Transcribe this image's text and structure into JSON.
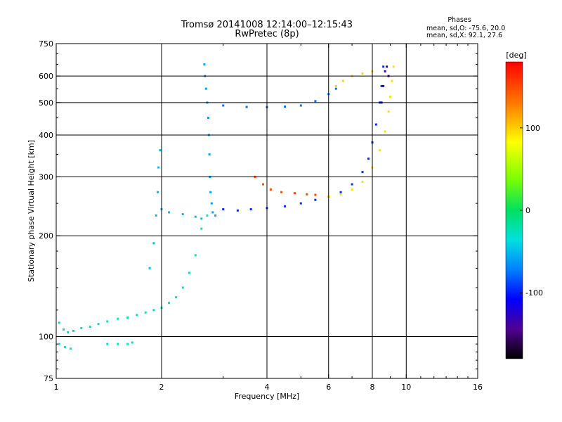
{
  "chart_data": {
    "type": "scatter",
    "title": "Tromsø 20141008 12:14:00–12:15:43",
    "subtitle": "RwPretec (8p)",
    "stats": {
      "heading": "Phases",
      "line_o": "mean, sd,O: -75.6, 20.0",
      "line_x": "mean, sd,X:  92.1, 27.6"
    },
    "xlabel": "Frequency [MHz]",
    "ylabel": "Stationary phase Virtual Height [km]",
    "x_scale": "log",
    "y_scale": "log",
    "xlim": [
      1,
      16
    ],
    "ylim": [
      75,
      750
    ],
    "x_ticks": [
      1,
      2,
      4,
      6,
      8,
      10,
      16
    ],
    "x_tick_labels": [
      "1",
      "2",
      "4",
      "6",
      "8",
      "10",
      "16"
    ],
    "y_ticks": [
      75,
      100,
      200,
      300,
      400,
      500,
      600,
      750
    ],
    "y_tick_labels": [
      "75",
      "100",
      "200",
      "300",
      "400",
      "500",
      "600",
      "750"
    ],
    "grid_x": [
      2,
      4,
      6,
      8,
      10
    ],
    "grid_y": [
      100,
      200,
      300,
      400,
      500,
      600
    ],
    "grid": true,
    "colorbar": {
      "label": "[deg]",
      "min": -180,
      "max": 180,
      "ticks": [
        100,
        0,
        -100
      ],
      "tick_labels": [
        "100",
        "0",
        "-100"
      ]
    },
    "series": [
      {
        "name": "",
        "color_deg": -25,
        "points": [
          [
            1.02,
            110
          ],
          [
            1.05,
            105
          ],
          [
            1.08,
            103
          ],
          [
            1.12,
            104
          ],
          [
            1.18,
            106
          ],
          [
            1.25,
            107
          ],
          [
            1.32,
            109
          ],
          [
            1.4,
            111
          ],
          [
            1.5,
            113
          ],
          [
            1.6,
            114
          ],
          [
            1.7,
            116
          ],
          [
            1.8,
            118
          ],
          [
            1.9,
            120
          ],
          [
            2.0,
            122
          ],
          [
            2.1,
            126
          ],
          [
            2.2,
            131
          ],
          [
            2.3,
            140
          ],
          [
            2.4,
            155
          ],
          [
            2.5,
            175
          ],
          [
            2.6,
            210
          ],
          [
            2.7,
            230
          ]
        ]
      },
      {
        "name": "",
        "color_deg": -30,
        "points": [
          [
            1.02,
            95
          ],
          [
            1.06,
            93
          ],
          [
            1.1,
            92
          ],
          [
            1.4,
            95
          ],
          [
            1.5,
            95
          ],
          [
            1.6,
            95
          ],
          [
            1.65,
            96
          ]
        ]
      },
      {
        "name": "",
        "color_deg": -60,
        "points": [
          [
            2.65,
            650
          ],
          [
            2.66,
            600
          ],
          [
            2.68,
            550
          ],
          [
            2.7,
            500
          ],
          [
            2.72,
            450
          ],
          [
            2.73,
            400
          ],
          [
            2.74,
            350
          ],
          [
            2.75,
            300
          ],
          [
            2.76,
            270
          ],
          [
            2.78,
            250
          ],
          [
            2.8,
            235
          ],
          [
            2.85,
            230
          ]
        ]
      },
      {
        "name": "",
        "color_deg": -50,
        "points": [
          [
            1.85,
            160
          ],
          [
            1.9,
            190
          ],
          [
            1.93,
            230
          ],
          [
            1.95,
            270
          ],
          [
            1.96,
            320
          ],
          [
            1.98,
            360
          ],
          [
            2.0,
            240
          ],
          [
            2.1,
            235
          ],
          [
            2.3,
            232
          ],
          [
            2.5,
            228
          ],
          [
            2.6,
            225
          ]
        ]
      },
      {
        "name": "",
        "color_deg": -95,
        "points": [
          [
            3.0,
            240
          ],
          [
            3.3,
            238
          ],
          [
            3.6,
            240
          ],
          [
            4.0,
            242
          ],
          [
            4.5,
            245
          ],
          [
            5.0,
            250
          ],
          [
            5.5,
            256
          ],
          [
            6.0,
            262
          ],
          [
            6.5,
            270
          ],
          [
            7.0,
            285
          ],
          [
            7.5,
            310
          ],
          [
            7.8,
            340
          ],
          [
            8.0,
            380
          ],
          [
            8.2,
            430
          ],
          [
            8.4,
            500
          ],
          [
            8.5,
            560
          ],
          [
            8.6,
            640
          ]
        ]
      },
      {
        "name": "",
        "color_deg": -75,
        "points": [
          [
            3.0,
            490
          ],
          [
            3.5,
            485
          ],
          [
            4.0,
            484
          ],
          [
            4.5,
            486
          ],
          [
            5.0,
            490
          ],
          [
            5.5,
            505
          ],
          [
            6.0,
            530
          ],
          [
            6.3,
            550
          ]
        ]
      },
      {
        "name": "",
        "color_deg": 150,
        "points": [
          [
            3.7,
            300
          ],
          [
            3.9,
            285
          ],
          [
            4.1,
            275
          ],
          [
            4.4,
            270
          ],
          [
            4.8,
            268
          ],
          [
            5.2,
            266
          ],
          [
            5.5,
            265
          ]
        ]
      },
      {
        "name": "",
        "color_deg": 95,
        "points": [
          [
            6.0,
            262
          ],
          [
            6.5,
            266
          ],
          [
            7.0,
            275
          ],
          [
            7.5,
            290
          ],
          [
            8.0,
            320
          ],
          [
            8.4,
            360
          ],
          [
            8.7,
            410
          ],
          [
            8.9,
            470
          ],
          [
            9.0,
            520
          ],
          [
            9.1,
            580
          ],
          [
            9.2,
            640
          ]
        ]
      },
      {
        "name": "",
        "color_deg": 100,
        "points": [
          [
            6.3,
            560
          ],
          [
            6.6,
            580
          ],
          [
            7.0,
            600
          ],
          [
            7.5,
            610
          ],
          [
            8.0,
            620
          ]
        ]
      },
      {
        "name": "",
        "color_deg": -130,
        "points": [
          [
            8.5,
            500
          ],
          [
            8.6,
            560
          ],
          [
            8.7,
            620
          ],
          [
            8.8,
            640
          ],
          [
            8.9,
            600
          ]
        ]
      }
    ]
  }
}
